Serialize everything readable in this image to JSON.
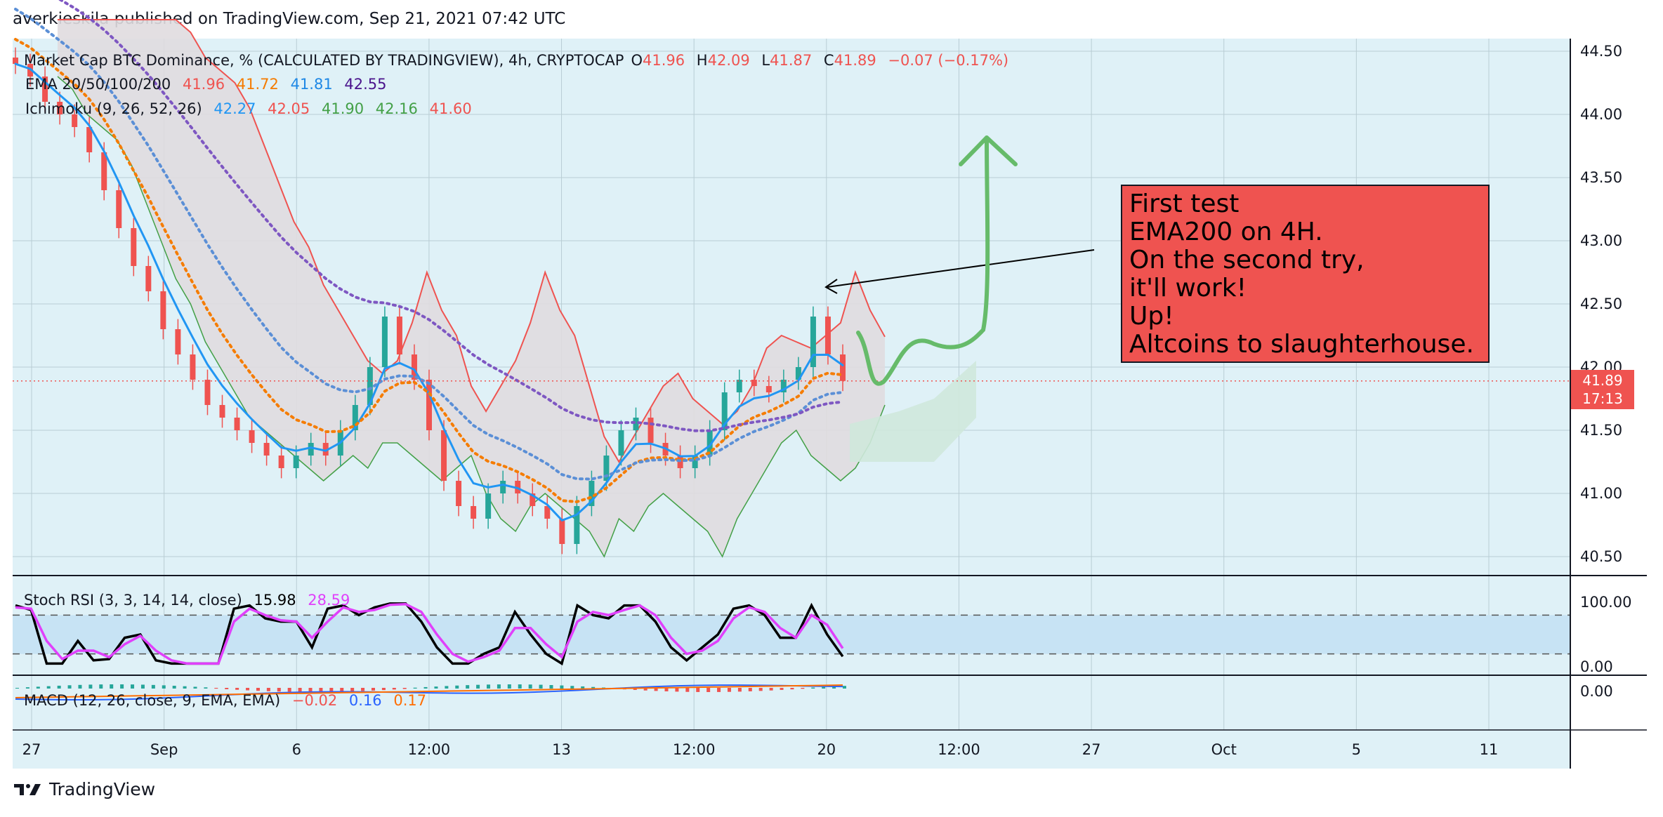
{
  "header": {
    "published": "averkieskila published on TradingView.com, Sep 21, 2021 07:42 UTC"
  },
  "footer": {
    "brand": "TradingView"
  },
  "main_legend": {
    "symbol": "Market Cap BTC Dominance, % (CALCULATED BY TRADINGVIEW), 4h, CRYPTOCAP",
    "o_label": "O",
    "o": "41.96",
    "h_label": "H",
    "h": "42.09",
    "l_label": "L",
    "l": "41.87",
    "c_label": "C",
    "c": "41.89",
    "change": "−0.07 (−0.17%)"
  },
  "ema_legend": {
    "label": "EMA 20/50/100/200",
    "v20": "41.96",
    "v50": "41.72",
    "v100": "41.81",
    "v200": "42.55"
  },
  "ichimoku_legend": {
    "label": "Ichimoku (9, 26, 52, 26)",
    "v1": "42.27",
    "v2": "42.05",
    "v3": "41.90",
    "v4": "42.16",
    "v5": "41.60"
  },
  "stoch_legend": {
    "label": "Stoch RSI (3, 3, 14, 14, close)",
    "k": "15.98",
    "d": "28.59"
  },
  "macd_legend": {
    "label": "MACD (12, 26, close, 9, EMA, EMA)",
    "hist": "−0.02",
    "macd": "0.16",
    "signal": "0.17"
  },
  "annotation": {
    "lines": [
      "First test",
      "EMA200 on 4H.",
      "On the second try,",
      "it'll work!",
      "Up!",
      "Altcoins to slaughterhouse."
    ]
  },
  "price_tag": {
    "price": "41.89",
    "countdown": "17:13"
  },
  "colors": {
    "background": "#dff1f7",
    "grid": "#b9cdd4",
    "ema20": "#2196f3",
    "ema50": "#f57c00",
    "ema100": "#5b8fd6",
    "ema200": "#7e57c2",
    "up": "#26a69a",
    "down": "#ef5350",
    "cloud": "#e0dcdf",
    "cloud_bull": "#cfe8dc",
    "arrow": "#66bb6a",
    "stoch_k": "#000000",
    "stoch_d": "#e040fb",
    "stoch_band": "#c7e3f4"
  },
  "chart_data": [
    {
      "type": "candlestick",
      "title": "Market Cap BTC Dominance, % (CALCULATED BY TRADINGVIEW), 4h, CRYPTOCAP",
      "x_tick_labels": [
        "27",
        "Sep",
        "6",
        "12:00",
        "13",
        "12:00",
        "20",
        "12:00",
        "27",
        "Oct",
        "5",
        "11"
      ],
      "y_tick_labels": [
        "44.50",
        "44.00",
        "43.50",
        "43.00",
        "42.50",
        "42.00",
        "41.50",
        "41.00",
        "40.50"
      ],
      "ylim": [
        40.35,
        44.6
      ],
      "last_price": 41.89,
      "close_series": [
        44.4,
        44.3,
        44.1,
        44.0,
        43.9,
        43.7,
        43.4,
        43.1,
        42.8,
        42.6,
        42.3,
        42.1,
        41.9,
        41.7,
        41.6,
        41.5,
        41.4,
        41.3,
        41.2,
        41.3,
        41.4,
        41.3,
        41.5,
        41.7,
        42.0,
        42.4,
        42.1,
        41.9,
        41.5,
        41.1,
        40.9,
        40.8,
        41.0,
        41.1,
        41.0,
        40.9,
        40.8,
        40.6,
        40.9,
        41.1,
        41.3,
        41.5,
        41.6,
        41.4,
        41.3,
        41.2,
        41.3,
        41.5,
        41.8,
        41.9,
        41.85,
        41.8,
        41.9,
        42.0,
        42.4,
        42.1,
        41.89
      ],
      "ema": [
        {
          "name": "EMA 20",
          "last": 41.96
        },
        {
          "name": "EMA 50",
          "last": 41.72
        },
        {
          "name": "EMA 100",
          "last": 41.81
        },
        {
          "name": "EMA 200",
          "last": 42.55
        }
      ],
      "annotations": [
        "First test",
        "EMA200 on 4H.",
        "On the second try,",
        "it'll work!",
        "Up!",
        "Altcoins to slaughterhouse."
      ]
    },
    {
      "type": "line",
      "title": "Stoch RSI (3, 3, 14, 14, close)",
      "y_tick_labels": [
        "100.00",
        "0.00"
      ],
      "ylim": [
        0,
        100
      ],
      "series": [
        {
          "name": "K",
          "last": 15.98,
          "values": [
            95,
            88,
            5,
            5,
            40,
            10,
            12,
            45,
            50,
            10,
            5,
            5,
            5,
            5,
            90,
            95,
            75,
            70,
            70,
            30,
            90,
            95,
            80,
            92,
            98,
            98,
            70,
            30,
            5,
            5,
            20,
            30,
            85,
            50,
            20,
            5,
            95,
            80,
            75,
            95,
            95,
            70,
            30,
            10,
            30,
            50,
            90,
            95,
            80,
            45,
            45,
            95,
            50,
            15.98
          ]
        },
        {
          "name": "D",
          "last": 28.59,
          "values": [
            92,
            90,
            40,
            12,
            25,
            25,
            15,
            35,
            48,
            25,
            10,
            5,
            5,
            5,
            70,
            90,
            80,
            72,
            70,
            45,
            70,
            92,
            85,
            88,
            96,
            97,
            85,
            50,
            20,
            8,
            15,
            25,
            60,
            60,
            35,
            15,
            70,
            85,
            80,
            88,
            95,
            80,
            45,
            20,
            25,
            40,
            75,
            92,
            85,
            60,
            45,
            80,
            65,
            28.59
          ]
        }
      ],
      "levels": [
        80,
        20
      ]
    },
    {
      "type": "bar",
      "title": "MACD (12, 26, close, 9, EMA, EMA)",
      "y_tick_labels": [
        "0.00"
      ],
      "series": [
        {
          "name": "Histogram",
          "last": -0.02
        },
        {
          "name": "MACD",
          "last": 0.16
        },
        {
          "name": "Signal",
          "last": 0.17
        }
      ]
    }
  ]
}
